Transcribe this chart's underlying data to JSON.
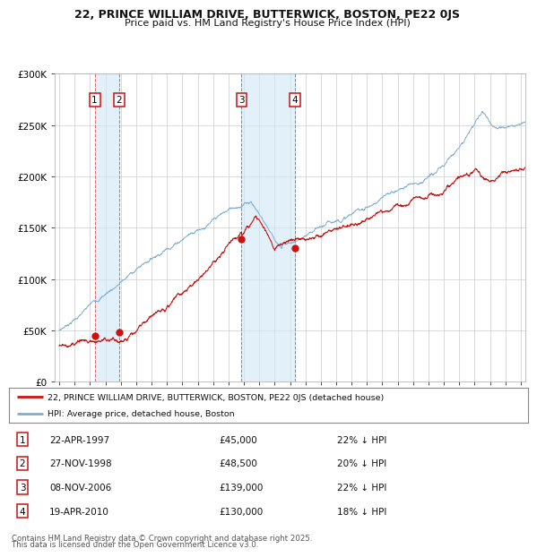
{
  "title_line1": "22, PRINCE WILLIAM DRIVE, BUTTERWICK, BOSTON, PE22 0JS",
  "title_line2": "Price paid vs. HM Land Registry's House Price Index (HPI)",
  "hpi_color": "#7eadd4",
  "price_color": "#cc1111",
  "background_color": "#ffffff",
  "plot_bg_color": "#ffffff",
  "grid_color": "#cccccc",
  "transactions": [
    {
      "num": 1,
      "date_str": "22-APR-1997",
      "year": 1997.3,
      "price": 45000,
      "pct": "22%",
      "dir": "↓"
    },
    {
      "num": 2,
      "date_str": "27-NOV-1998",
      "year": 1998.9,
      "price": 48500,
      "pct": "20%",
      "dir": "↓"
    },
    {
      "num": 3,
      "date_str": "08-NOV-2006",
      "year": 2006.85,
      "price": 139000,
      "pct": "22%",
      "dir": "↓"
    },
    {
      "num": 4,
      "date_str": "19-APR-2010",
      "year": 2010.3,
      "price": 130000,
      "pct": "18%",
      "dir": "↓"
    }
  ],
  "ylim": [
    0,
    300000
  ],
  "xlim_start": 1994.7,
  "xlim_end": 2025.3,
  "yticks": [
    0,
    50000,
    100000,
    150000,
    200000,
    250000,
    300000
  ],
  "ytick_labels": [
    "£0",
    "£50K",
    "£100K",
    "£150K",
    "£200K",
    "£250K",
    "£300K"
  ],
  "xticks": [
    1995,
    1996,
    1997,
    1998,
    1999,
    2000,
    2001,
    2002,
    2003,
    2004,
    2005,
    2006,
    2007,
    2008,
    2009,
    2010,
    2011,
    2012,
    2013,
    2014,
    2015,
    2016,
    2017,
    2018,
    2019,
    2020,
    2021,
    2022,
    2023,
    2024,
    2025
  ],
  "legend_price_label": "22, PRINCE WILLIAM DRIVE, BUTTERWICK, BOSTON, PE22 0JS (detached house)",
  "legend_hpi_label": "HPI: Average price, detached house, Boston",
  "footer_line1": "Contains HM Land Registry data © Crown copyright and database right 2025.",
  "footer_line2": "This data is licensed under the Open Government Licence v3.0."
}
